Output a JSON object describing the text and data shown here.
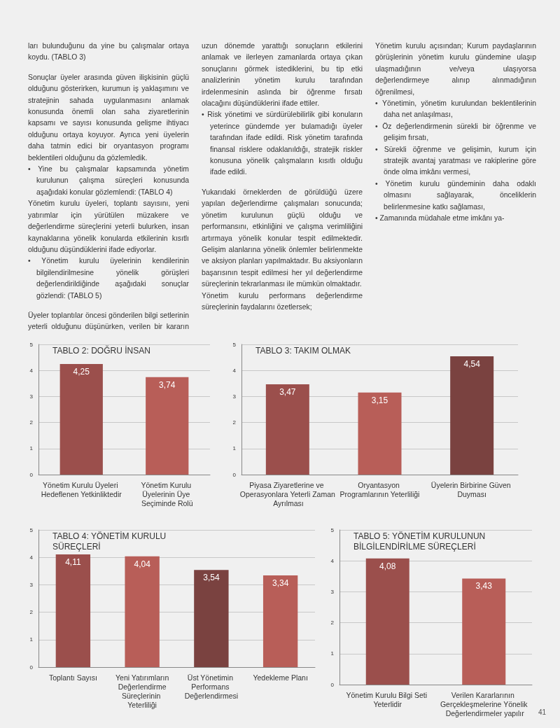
{
  "chart_data": [
    {
      "type": "other",
      "annotations": [
        "ları bulunduğunu da yine bu çalışmalar ortaya koydu. (TABLO 3)",
        "Sonuçlar üyeler arasında güven ilişkisinin güçlü olduğunu gösterirken, kurumun iş yaklaşımını ve stratejinin sahada uygulanmasını anlamak konusunda önemli olan saha ziyaretlerinin kapsamı ve sayısı konusunda gelişme ihtiyacı olduğunu ortaya koyuyor. Ayrıca yeni üyelerin daha tatmin edici bir oryantasyon programı beklentileri olduğunu da gözlemledik.",
        "• Yine bu çalışmalar kapsamında yönetim kurulunun çalışma süreçleri konusunda aşağıdaki konular gözlemlendi: (TABLO 4)",
        "Yönetim kurulu üyeleri, toplantı sayısını, yeni yatırımlar için yürütülen müzakere ve değerlendirme süreçlerini yeterli bulurken, insan kaynaklarına yönelik konularda etkilerinin kısıtlı olduğunu düşündüklerini ifade ediyorlar.",
        "• Yönetim kurulu üyelerinin kendilerinin bilgilendirilmesine yönelik görüşleri değerlendirildiğinde aşağıdaki sonuçlar gözlendi: (TABLO 5)",
        "Üyeler toplantılar öncesi gönderilen bilgi setlerinin yeterli olduğunu düşünürken, verilen bir kararın uzun dönemde yarattığı sonuçların etkilerini anlamak ve ilerleyen zamanlarda ortaya çıkan sonuçlarını görmek istediklerini, bu tip etki analizlerinin yönetim kurulu tarafından irdelenmesinin aslında bir öğrenme fırsatı olacağını düşündüklerini ifade ettiler.",
        "• Risk yönetimi ve sürdürülebilirlik gibi konuların yeterince gündemde yer bulamadığı üyeler tarafından ifade edildi. Risk yönetim tarafında finansal risklere odaklanıldığı, stratejik riskler konusuna yönelik çalışmaların kısıtlı olduğu ifade edildi.",
        "Yukarıdaki örneklerden de görüldüğü üzere yapılan değerlendirme çalışmaları sonucunda; yönetim kurulunun güçlü olduğu ve performansını, etkinliğini ve çalışma verimliliğini artırmaya yönelik konular tespit edilmektedir. Gelişim alanlarına yönelik önlemler belirlenmekte ve aksiyon planları yapılmaktadır. Bu aksiyonların başarısının tespit edilmesi her yıl değerlendirme süreçlerinin tekrarlanması ile mümkün olmaktadır.",
        "Yönetim kurulu performans değerlendirme süreçlerinin faydalarını özetlersek;",
        "Yönetim kurulu açısından; Kurum paydaşlarının görüşlerinin yönetim kurulu gündemine ulaşıp ulaşmadığının ve/veya ulaşıyorsa değerlendirmeye alınıp alınmadığının öğrenilmesi,",
        "• Yönetimin, yönetim kurulundan beklentilerinin daha net anlaşılması,",
        "• Öz değerlendirmenin sürekli bir öğrenme ve gelişim fırsatı,",
        "• Sürekli öğrenme ve gelişimin, kurum için stratejik avantaj yaratması ve rakiplerine göre önde olma imkânı vermesi,",
        "• Yönetim kurulu gündeminin daha odaklı olmasını sağlayarak, önceliklerin belirlenmesine katkı sağlaması,",
        "• Zamanında müdahale etme imkânı ya-"
      ]
    },
    {
      "type": "bar",
      "title": "TABLO 2: DOĞRU İNSAN",
      "categories": [
        "Yönetim Kurulu Üyeleri Hedeflenen Yetkinliktedir",
        "Yönetim Kurulu Üyelerinin Üye Seçiminde Rolü"
      ],
      "values": [
        4.25,
        3.74
      ],
      "value_labels": [
        "4,25",
        "3,74"
      ],
      "colors": [
        "#9b4f4c",
        "#b85e58"
      ],
      "ylim": [
        0,
        5
      ],
      "yticks": [
        0,
        1,
        2,
        3,
        4,
        5
      ],
      "grid": "y"
    },
    {
      "type": "bar",
      "title": "TABLO 3: TAKIM OLMAK",
      "categories": [
        "Piyasa Ziyaretlerine ve Operasyonlara Yeterli Zaman Ayrılması",
        "Oryantasyon Programlarının Yeterliliği",
        "Üyelerin Birbirine Güven Duyması"
      ],
      "values": [
        3.47,
        3.15,
        4.54
      ],
      "value_labels": [
        "3,47",
        "3,15",
        "4,54"
      ],
      "colors": [
        "#9b4f4c",
        "#b85e58",
        "#7a4240"
      ],
      "ylim": [
        0,
        5
      ],
      "yticks": [
        0,
        1,
        2,
        3,
        4,
        5
      ],
      "grid": "y"
    },
    {
      "type": "bar",
      "title": "TABLO 4: YÖNETİM KURULU SÜREÇLERİ",
      "categories": [
        "Toplantı Sayısı",
        "Yeni Yatırımların Değerlendirme Süreçlerinin Yeterliliği",
        "Üst Yönetimin Performans Değerlendirmesi",
        "Yedekleme Planı"
      ],
      "values": [
        4.11,
        4.04,
        3.54,
        3.34
      ],
      "value_labels": [
        "4,11",
        "4,04",
        "3,54",
        "3,34"
      ],
      "colors": [
        "#9b4f4c",
        "#b85e58",
        "#7a4240",
        "#b85e58"
      ],
      "ylim": [
        0,
        5
      ],
      "yticks": [
        0,
        1,
        2,
        3,
        4,
        5
      ],
      "grid": "y"
    },
    {
      "type": "bar",
      "title": "TABLO 5: YÖNETİM KURULUNUN BİLGİLENDİRİLME SÜREÇLERİ",
      "categories": [
        "Yönetim Kurulu Bilgi Seti Yeterlidir",
        "Verilen Kararlarının Gerçekleşmelerine Yönelik Değerlendirmeler yapılır"
      ],
      "values": [
        4.08,
        3.43
      ],
      "value_labels": [
        "4,08",
        "3,43"
      ],
      "colors": [
        "#9b4f4c",
        "#b85e58"
      ],
      "ylim": [
        0,
        5
      ],
      "yticks": [
        0,
        1,
        2,
        3,
        4,
        5
      ],
      "grid": "y",
      "annotations": [
        "41"
      ]
    }
  ]
}
